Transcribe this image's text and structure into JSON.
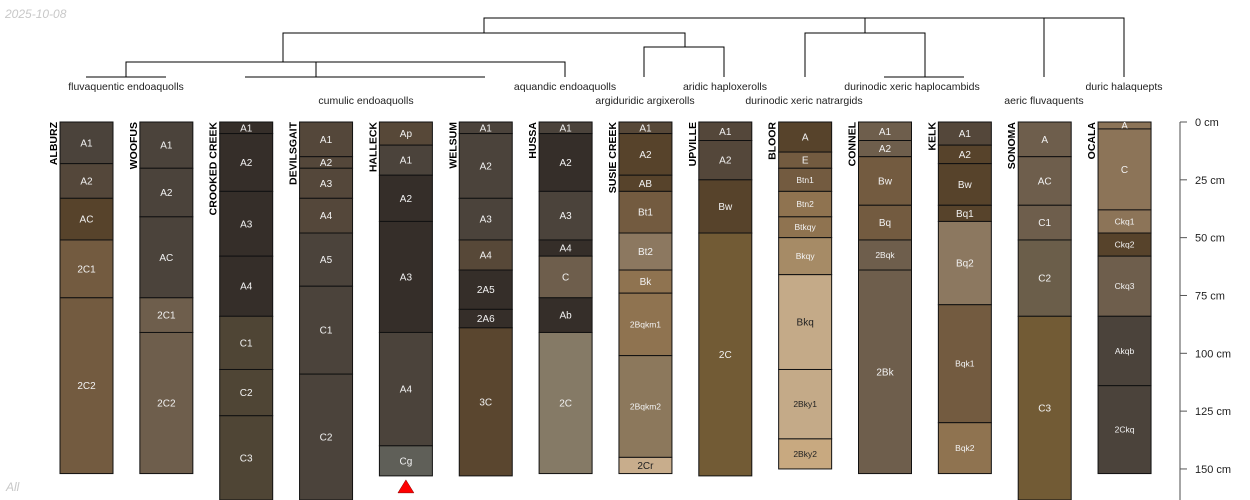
{
  "date_stamp": "2025-10-08",
  "subset_label": "All",
  "chart_data": {
    "type": "soil-profile-sketch",
    "depth_unit": "cm",
    "depth_axis": {
      "ticks": [
        0,
        25,
        50,
        75,
        100,
        125,
        150
      ],
      "labels": [
        "0 cm",
        "25 cm",
        "50 cm",
        "75 cm",
        "100 cm",
        "125 cm",
        "150 cm"
      ],
      "range": [
        0,
        163
      ]
    },
    "taxa": [
      {
        "label": "fluvaquentic endoaquolls",
        "row": 1
      },
      {
        "label": "cumulic endoaquolls",
        "row": 2
      },
      {
        "label": "aquandic endoaquolls",
        "row": 1
      },
      {
        "label": "argiduridic argixerolls",
        "row": 2
      },
      {
        "label": "aridic haploxerolls",
        "row": 1
      },
      {
        "label": "durinodic xeric natrargids",
        "row": 2
      },
      {
        "label": "durinodic xeric haplocambids",
        "row": 1
      },
      {
        "label": "aeric fluvaquents",
        "row": 2
      },
      {
        "label": "duric halaquepts",
        "row": 1
      }
    ],
    "profiles": [
      {
        "name": "ALBURZ",
        "horizons": [
          [
            "A1",
            0,
            18,
            "#4b433b"
          ],
          [
            "A2",
            18,
            33,
            "#54473a"
          ],
          [
            "AC",
            33,
            51,
            "#57432b"
          ],
          [
            "2C1",
            51,
            76,
            "#735b40"
          ],
          [
            "2C2",
            76,
            152,
            "#735b40"
          ]
        ]
      },
      {
        "name": "WOOFUS",
        "horizons": [
          [
            "A1",
            0,
            20,
            "#4b433b"
          ],
          [
            "A2",
            20,
            41,
            "#4b433b"
          ],
          [
            "AC",
            41,
            76,
            "#4b433b"
          ],
          [
            "2C1",
            76,
            91,
            "#6e5e4c"
          ],
          [
            "2C2",
            91,
            152,
            "#6e5e4c"
          ]
        ]
      },
      {
        "name": "CROOKED CREEK",
        "horizons": [
          [
            "A1",
            0,
            5,
            "#352e29"
          ],
          [
            "A2",
            5,
            30,
            "#352e29"
          ],
          [
            "A3",
            30,
            58,
            "#352e29"
          ],
          [
            "A4",
            58,
            84,
            "#352e29"
          ],
          [
            "C1",
            84,
            107,
            "#4f4535"
          ],
          [
            "C2",
            107,
            127,
            "#4f4535"
          ],
          [
            "C3",
            127,
            175,
            "#4f4535"
          ]
        ]
      },
      {
        "name": "DEVILSGAIT",
        "horizons": [
          [
            "A1",
            0,
            15,
            "#54473a"
          ],
          [
            "A2",
            15,
            20,
            "#54473a"
          ],
          [
            "A3",
            20,
            33,
            "#54473a"
          ],
          [
            "A4",
            33,
            48,
            "#54473a"
          ],
          [
            "A5",
            48,
            71,
            "#4b433b"
          ],
          [
            "C1",
            71,
            109,
            "#4b433b"
          ],
          [
            "C2",
            109,
            175,
            "#4b433b"
          ]
        ]
      },
      {
        "name": "HALLECK",
        "horizons": [
          [
            "Ap",
            0,
            10,
            "#574838"
          ],
          [
            "A1",
            10,
            23,
            "#4b433b"
          ],
          [
            "A2",
            23,
            43,
            "#352e29"
          ],
          [
            "A3",
            43,
            91,
            "#352e29"
          ],
          [
            "A4",
            91,
            140,
            "#4b433b"
          ],
          [
            "Cg",
            140,
            153,
            "#5f5f58"
          ]
        ],
        "flag": true
      },
      {
        "name": "WELSUM",
        "horizons": [
          [
            "A1",
            0,
            5,
            "#4b433b"
          ],
          [
            "A2",
            5,
            33,
            "#4b433b"
          ],
          [
            "A3",
            33,
            51,
            "#4b433b"
          ],
          [
            "A4",
            51,
            64,
            "#574838"
          ],
          [
            "2A5",
            64,
            81,
            "#352e29"
          ],
          [
            "2A6",
            81,
            89,
            "#352e29"
          ],
          [
            "3C",
            89,
            153,
            "#5a462f"
          ]
        ]
      },
      {
        "name": "HUSSA",
        "horizons": [
          [
            "A1",
            0,
            5,
            "#4b433b"
          ],
          [
            "A2",
            5,
            30,
            "#352e29"
          ],
          [
            "A3",
            30,
            51,
            "#4b433b"
          ],
          [
            "A4",
            51,
            58,
            "#352e29"
          ],
          [
            "C",
            58,
            76,
            "#6e5e4c"
          ],
          [
            "Ab",
            76,
            91,
            "#352e29"
          ],
          [
            "2C",
            91,
            152,
            "#857a66"
          ]
        ]
      },
      {
        "name": "SUSIE CREEK",
        "horizons": [
          [
            "A1",
            0,
            5,
            "#574838"
          ],
          [
            "A2",
            5,
            23,
            "#57432b"
          ],
          [
            "AB",
            23,
            30,
            "#57432b"
          ],
          [
            "Bt1",
            30,
            48,
            "#735b40"
          ],
          [
            "Bt2",
            48,
            64,
            "#8c7860"
          ],
          [
            "Bk",
            64,
            74,
            "#8f7350"
          ],
          [
            "2Bqkm1",
            74,
            101,
            "#8f7350"
          ],
          [
            "2Bqkm2",
            101,
            145,
            "#8c785c"
          ],
          [
            "2Cr",
            145,
            152,
            "#c8ad8c"
          ]
        ]
      },
      {
        "name": "UPVILLE",
        "horizons": [
          [
            "A1",
            0,
            8,
            "#54473a"
          ],
          [
            "A2",
            8,
            25,
            "#54473a"
          ],
          [
            "Bw",
            25,
            48,
            "#57432b"
          ],
          [
            "2C",
            48,
            153,
            "#725b35"
          ]
        ]
      },
      {
        "name": "BLOOR",
        "horizons": [
          [
            "A",
            0,
            13,
            "#57432b"
          ],
          [
            "E",
            13,
            20,
            "#735b40"
          ],
          [
            "Btn1",
            20,
            30,
            "#735b40"
          ],
          [
            "Btn2",
            30,
            41,
            "#8f7350"
          ],
          [
            "Btkqy",
            41,
            50,
            "#8f7350"
          ],
          [
            "Bkqy",
            50,
            66,
            "#a68b66"
          ],
          [
            "Bkq",
            66,
            107,
            "#c4aa88"
          ],
          [
            "2Bky1",
            107,
            137,
            "#c4aa88"
          ],
          [
            "2Bky2",
            137,
            150,
            "#c8a980"
          ]
        ]
      },
      {
        "name": "CONNEL",
        "horizons": [
          [
            "A1",
            0,
            8,
            "#6e5e4c"
          ],
          [
            "A2",
            8,
            15,
            "#6e5e4c"
          ],
          [
            "Bw",
            15,
            36,
            "#735b40"
          ],
          [
            "Bq",
            36,
            51,
            "#735b40"
          ],
          [
            "2Bqk",
            51,
            64,
            "#6e5e4c"
          ],
          [
            "2Bk",
            64,
            152,
            "#6e5e4c"
          ]
        ]
      },
      {
        "name": "KELK",
        "horizons": [
          [
            "A1",
            0,
            10,
            "#54473a"
          ],
          [
            "A2",
            10,
            18,
            "#57432b"
          ],
          [
            "Bw",
            18,
            36,
            "#57432b"
          ],
          [
            "Bq1",
            36,
            43,
            "#57432b"
          ],
          [
            "Bq2",
            43,
            79,
            "#8c7860"
          ],
          [
            "Bqk1",
            79,
            130,
            "#735b40"
          ],
          [
            "Bqk2",
            130,
            152,
            "#8f7350"
          ]
        ]
      },
      {
        "name": "SONOMA",
        "horizons": [
          [
            "A",
            0,
            15,
            "#6e5e4c"
          ],
          [
            "AC",
            15,
            36,
            "#6e5e4c"
          ],
          [
            "C1",
            36,
            51,
            "#6e5e4c"
          ],
          [
            "C2",
            51,
            84,
            "#6b5e4a"
          ],
          [
            "C3",
            84,
            175,
            "#725b35"
          ]
        ]
      },
      {
        "name": "OCALA",
        "horizons": [
          [
            "A",
            0,
            3,
            "#8c7458"
          ],
          [
            "C",
            3,
            38,
            "#8c7458"
          ],
          [
            "Ckq1",
            38,
            48,
            "#8c7458"
          ],
          [
            "Ckq2",
            48,
            58,
            "#57432b"
          ],
          [
            "Ckq3",
            58,
            84,
            "#6e5e4c"
          ],
          [
            "Akqb",
            84,
            114,
            "#4b433b"
          ],
          [
            "2Ckq",
            114,
            152,
            "#4b433b"
          ]
        ]
      }
    ]
  }
}
